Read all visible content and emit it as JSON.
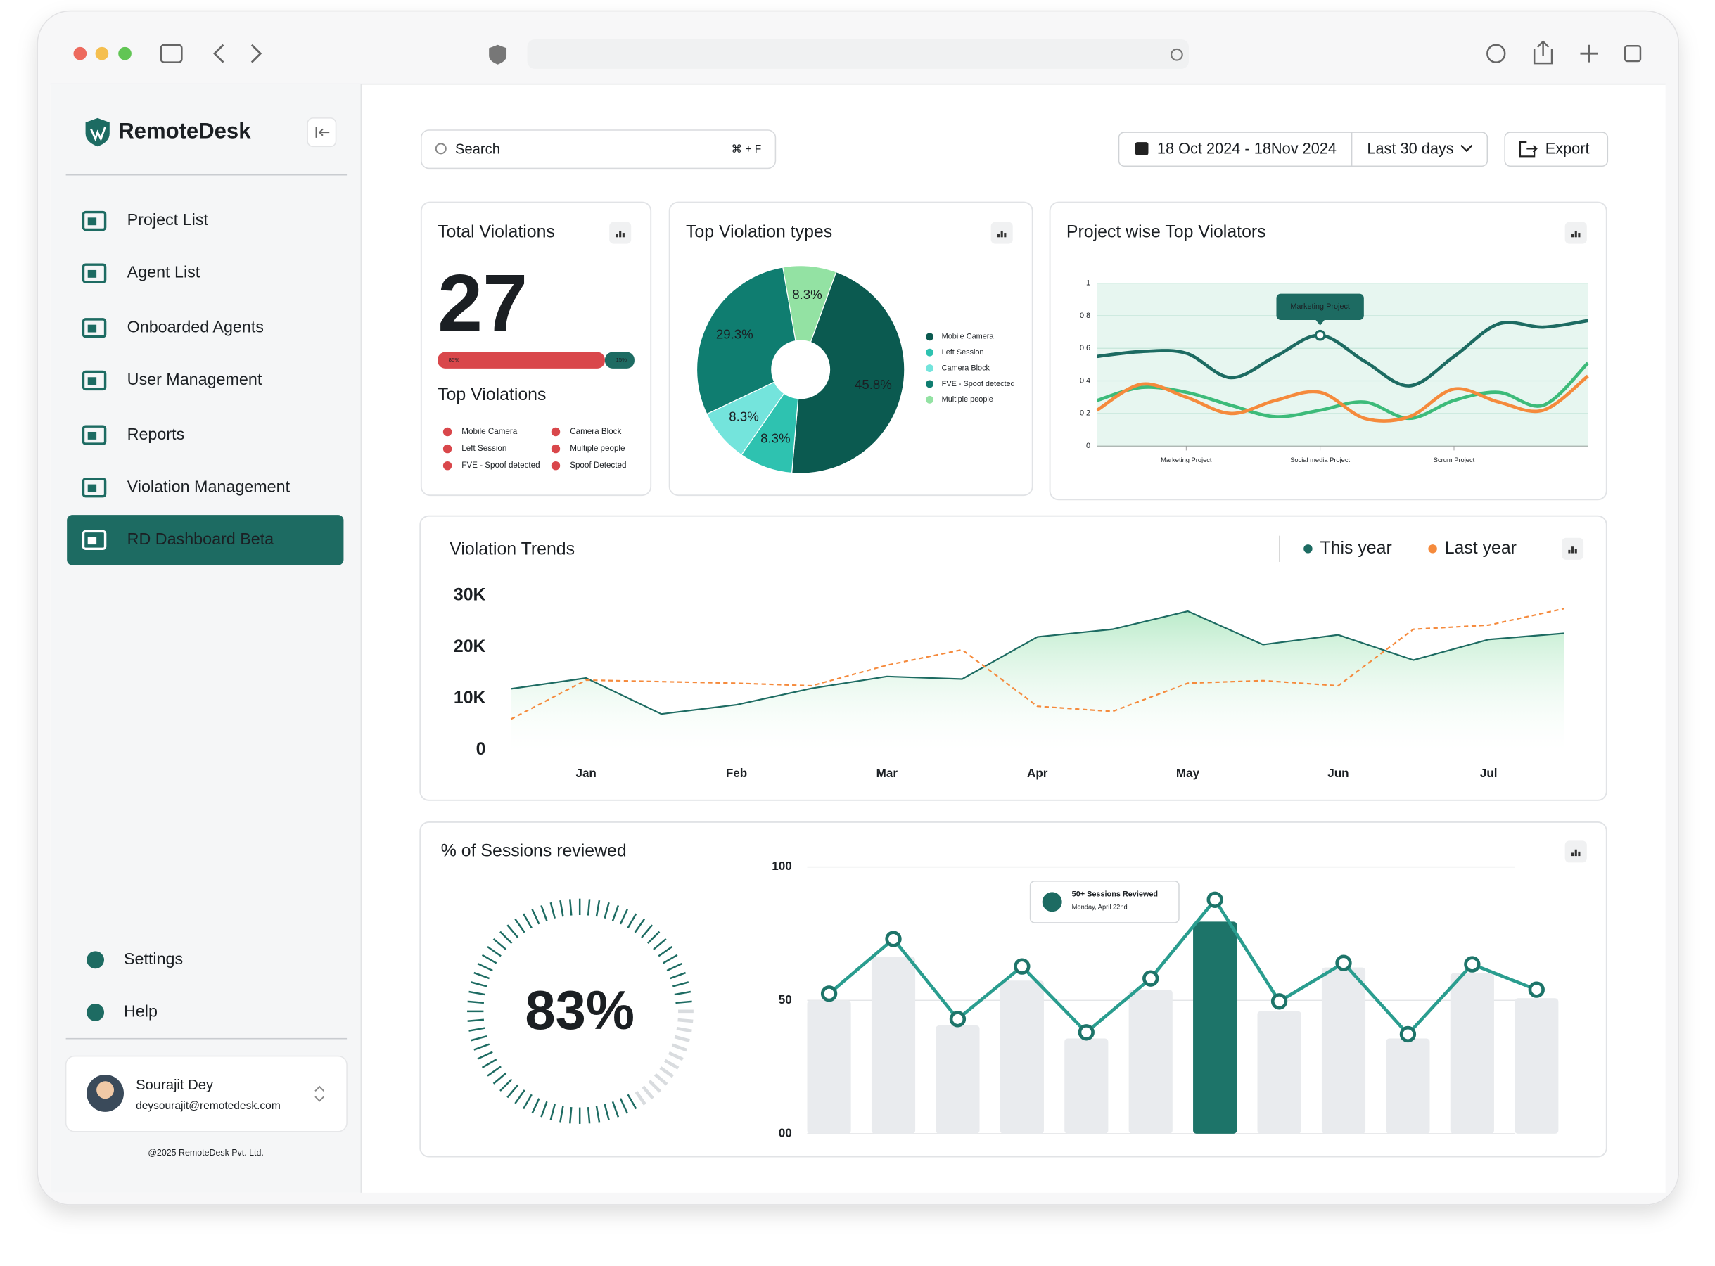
{
  "sidebar": {
    "brand": "RemoteDesk",
    "nav": [
      "Project List",
      "Agent List",
      "Onboarded Agents",
      "User Management",
      "Reports",
      "Violation Management",
      "RD Dashboard Beta"
    ],
    "nav_active": 6,
    "footer_nav": [
      "Settings",
      "Help"
    ],
    "user": {
      "name": "Sourajit Dey",
      "email": "deysourajit@remotedesk.com"
    },
    "copyright": "@2025 RemoteDesk Pvt. Ltd."
  },
  "toolbar": {
    "search": "Search",
    "shortcut": "⌘ + F",
    "date_range": "18 Oct 2024 - 18Nov 2024",
    "period": "Last 30 days",
    "export": "Export"
  },
  "chart_data": [
    {
      "type": "stat",
      "title": "Total Violations",
      "value": 27,
      "split": {
        "values": [
          85,
          15
        ],
        "value_labels": [
          "85%",
          "15%"
        ],
        "colors": [
          "#d9474b",
          "#1d6b62"
        ]
      },
      "subtitle": "Top Violations",
      "legend": [
        "Mobile Camera",
        "Left Session",
        "FVE - Spoof detected",
        "Camera Block",
        "Multiple people",
        "Spoof Detected"
      ],
      "legend_color": "#d9474b"
    },
    {
      "type": "pie",
      "title": "Top Violation types",
      "categories": [
        "Mobile Camera",
        "Left Session",
        "Camera Block",
        "FVE - Spoof detected",
        "Multiple people"
      ],
      "values": [
        45.8,
        8.3,
        8.3,
        29.3,
        8.3
      ],
      "value_labels": [
        "45.8%",
        "8.3%",
        "8.3%",
        "29.3%",
        "8.3%"
      ],
      "colors": [
        "#0b5a50",
        "#2ec2b0",
        "#74e4dc",
        "#0f7d70",
        "#93e2a3"
      ]
    },
    {
      "type": "line",
      "title": "Project wise Top Violators",
      "categories": [
        null,
        null,
        "Marketing Project",
        null,
        null,
        "Social media Project",
        null,
        null,
        "Scrum Project",
        null,
        null,
        null
      ],
      "series": [
        {
          "color": "#1d6b62",
          "values": [
            0.55,
            0.58,
            0.57,
            0.42,
            0.55,
            0.68,
            0.52,
            0.37,
            0.55,
            0.75,
            0.73,
            0.77
          ]
        },
        {
          "color": "#3dbb7a",
          "values": [
            0.28,
            0.36,
            0.33,
            0.25,
            0.18,
            0.22,
            0.27,
            0.17,
            0.28,
            0.33,
            0.25,
            0.51
          ]
        },
        {
          "color": "#f58a3c",
          "values": [
            0.22,
            0.38,
            0.3,
            0.2,
            0.28,
            0.33,
            0.17,
            0.18,
            0.35,
            0.27,
            0.22,
            0.43
          ]
        }
      ],
      "ylim": [
        0,
        1
      ],
      "yticks": [
        0,
        0.2,
        0.4,
        0.6,
        0.8,
        1
      ],
      "grid": true,
      "smooth": true,
      "annotation": "Marketing Project"
    },
    {
      "type": "line",
      "title": "Violation Trends",
      "categories": [
        null,
        "Jan",
        null,
        "Feb",
        null,
        "Mar",
        null,
        "Apr",
        null,
        "May",
        null,
        "Jun",
        null,
        "Jul",
        null
      ],
      "series": [
        {
          "name": "This year",
          "color": "#1d6b62",
          "area": true,
          "values": [
            11900,
            14000,
            7000,
            8800,
            12000,
            14300,
            13800,
            22000,
            23500,
            27000,
            20500,
            22400,
            17500,
            21500,
            22700
          ]
        },
        {
          "name": "Last year",
          "color": "#f58a3c",
          "dashed": true,
          "values": [
            6000,
            13600,
            13300,
            13000,
            12500,
            16500,
            19500,
            8500,
            7500,
            13000,
            13500,
            12500,
            23500,
            24300,
            27500
          ]
        }
      ],
      "ylim": [
        0,
        30000
      ],
      "yticks": [
        0,
        {
          "value": 10000,
          "label": "10K"
        },
        {
          "value": 20000,
          "label": "20K"
        },
        {
          "value": 30000,
          "label": "30K"
        }
      ],
      "grid": false,
      "smooth": false
    },
    {
      "type": "bar_line",
      "title": "% of Sessions reviewed",
      "gauge": {
        "value": 83,
        "value_label": "83%",
        "color": "#1d6b62"
      },
      "bars": [
        50,
        66.4,
        40.6,
        57.4,
        35.7,
        54,
        79.5,
        46,
        62.3,
        35.7,
        60.2,
        50.8
      ],
      "line": [
        52.5,
        73,
        43,
        62.7,
        38,
        58.2,
        87.7,
        49.6,
        64,
        37.3,
        63.5,
        54
      ],
      "bar_color": "#e9ebee",
      "highlight": 6,
      "highlight_color": "#1d7469",
      "line_color": "#2a9d8f",
      "tooltip": {
        "title": "50+ Sessions Reviewed",
        "subtitle": "Monday, April 22nd"
      },
      "ylim": [
        0,
        100
      ],
      "yticks": [
        {
          "value": 0,
          "label": "00"
        },
        50,
        100
      ],
      "grid": true
    }
  ]
}
